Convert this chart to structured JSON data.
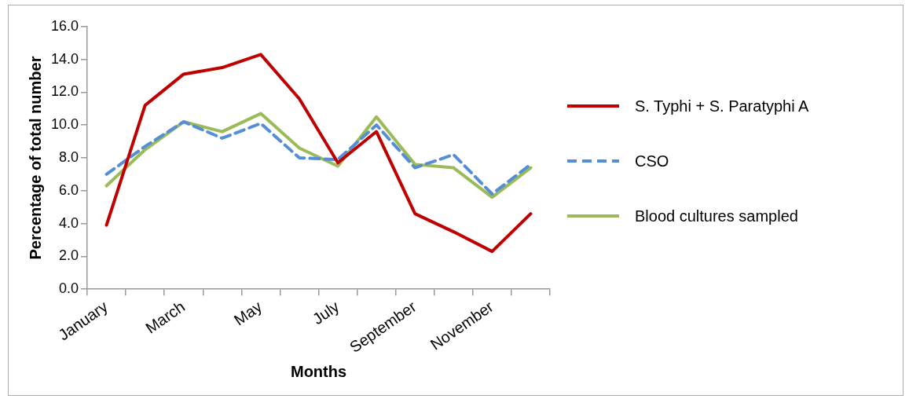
{
  "chart_data": {
    "type": "line",
    "xlabel": "Months",
    "ylabel": "Percentage of total number",
    "categories": [
      "January",
      null,
      "March",
      null,
      "May",
      null,
      "July",
      null,
      "September",
      null,
      "November",
      null
    ],
    "series": [
      {
        "name": "S. Typhi + S. Paratyphi A",
        "color": "#c00000",
        "values": [
          3.9,
          11.2,
          13.1,
          13.5,
          14.3,
          11.6,
          7.7,
          9.6,
          4.6,
          3.5,
          2.3,
          4.6
        ]
      },
      {
        "name": "CSO",
        "color": "#558ed5",
        "line_style": "dashed",
        "values": [
          7.0,
          8.7,
          10.2,
          9.2,
          10.1,
          8.0,
          7.9,
          10.0,
          7.4,
          8.2,
          5.8,
          7.6
        ]
      },
      {
        "name": "Blood cultures sampled",
        "color": "#9bbb59",
        "values": [
          6.3,
          8.5,
          10.2,
          9.6,
          10.7,
          8.6,
          7.5,
          10.5,
          7.6,
          7.4,
          5.6,
          7.4
        ]
      }
    ],
    "ylim": [
      0,
      16
    ],
    "yticks": [
      {
        "value": 0,
        "label": "0.0"
      },
      {
        "value": 2,
        "label": "2.0"
      },
      {
        "value": 4,
        "label": "4.0"
      },
      {
        "value": 6,
        "label": "6.0"
      },
      {
        "value": 8,
        "label": "8.0"
      },
      {
        "value": 10,
        "label": "10.0"
      },
      {
        "value": 12,
        "label": "12.0"
      },
      {
        "value": 14,
        "label": "14.0"
      },
      {
        "value": 16,
        "label": "16.0"
      }
    ],
    "grid": false,
    "legend": "right",
    "marker": "none",
    "line_style": "solid"
  }
}
